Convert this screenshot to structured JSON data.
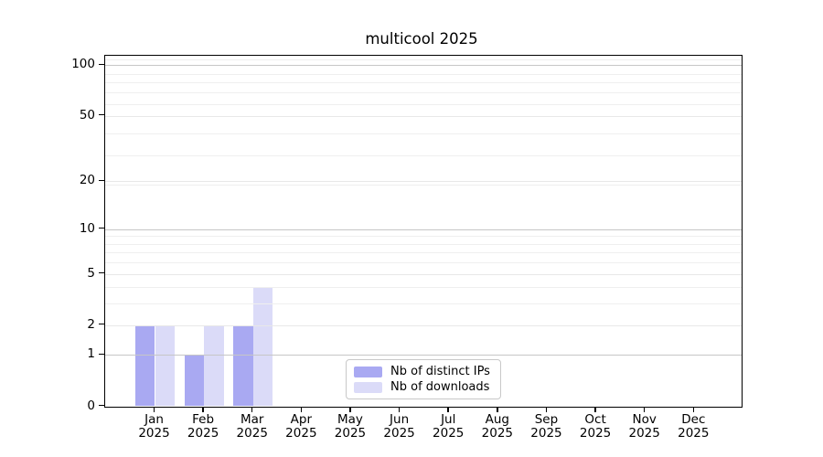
{
  "chart_data": {
    "type": "bar",
    "title": "multicool 2025",
    "categories": [
      "Jan",
      "Feb",
      "Mar",
      "Apr",
      "May",
      "Jun",
      "Jul",
      "Aug",
      "Sep",
      "Oct",
      "Nov",
      "Dec"
    ],
    "year": "2025",
    "series": [
      {
        "name": "Nb of distinct IPs",
        "color": "#a9a9f2",
        "values": [
          2,
          1,
          2,
          0,
          0,
          0,
          0,
          0,
          0,
          0,
          0,
          0
        ]
      },
      {
        "name": "Nb of downloads",
        "color": "#dbdbf8",
        "values": [
          2,
          2,
          4,
          0,
          0,
          0,
          0,
          0,
          0,
          0,
          0,
          0
        ]
      }
    ],
    "y_ticks": [
      0,
      1,
      2,
      5,
      10,
      20,
      50,
      100
    ],
    "y_scale": "log1p",
    "ylim": [
      0,
      114
    ],
    "xlabel": "",
    "ylabel": "",
    "grid": "horizontal",
    "legend_position": "lower center",
    "colors": {
      "grid_major": "#c6c6c6",
      "grid_labeled_minor": "#e8e8e8",
      "grid_minor": "#efefef",
      "axis": "#000000"
    }
  }
}
